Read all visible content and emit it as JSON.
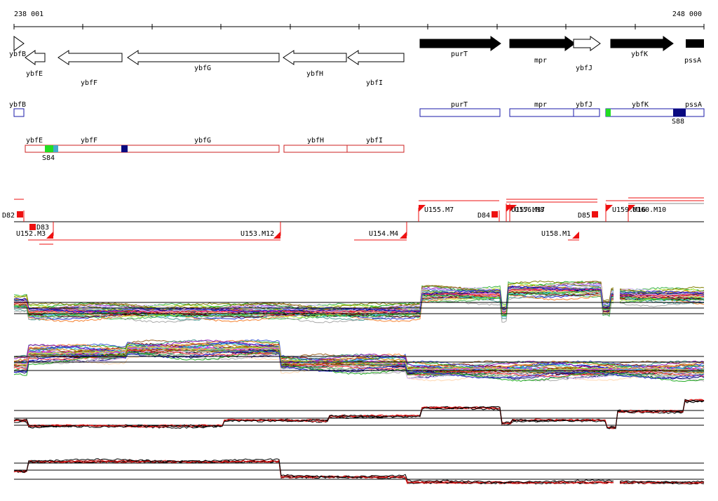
{
  "coordinates": {
    "start_label": "238 001",
    "end_label": "248 000"
  },
  "genes_reverse": [
    "ybfB",
    "ybfE",
    "ybfF",
    "ybfG",
    "ybfH",
    "ybfI"
  ],
  "genes_forward": [
    "purT",
    "mpr",
    "ybfJ",
    "ybfK",
    "pssA"
  ],
  "operon_top": [
    "ybfB",
    "purT",
    "mpr",
    "ybfJ",
    "ybfK",
    "pssA"
  ],
  "operon_top_tags": [
    "S88"
  ],
  "operon_bottom": [
    "ybfE",
    "ybfF",
    "ybfG",
    "ybfH",
    "ybfI"
  ],
  "operon_bottom_tags": [
    "S84"
  ],
  "segment_labels": [
    "D82",
    "D83",
    "U152.M3",
    "U153.M12",
    "U154.M4",
    "U155.M7",
    "D84",
    "U157.M17",
    "U156.M8",
    "D85",
    "U158.M1",
    "U159.M16",
    "U160.M10"
  ],
  "colors": {
    "gene_forward_fill": "#000000",
    "gene_reverse_fill": "#ffffff",
    "operon_top_border": "#1a1aa8",
    "operon_bottom_border": "#cc2222",
    "tag_green": "#22dd22",
    "tag_navy": "#0a0a80",
    "segment_red": "#ee1111",
    "profile_red": "#dd1111",
    "profile_black": "#000000"
  }
}
